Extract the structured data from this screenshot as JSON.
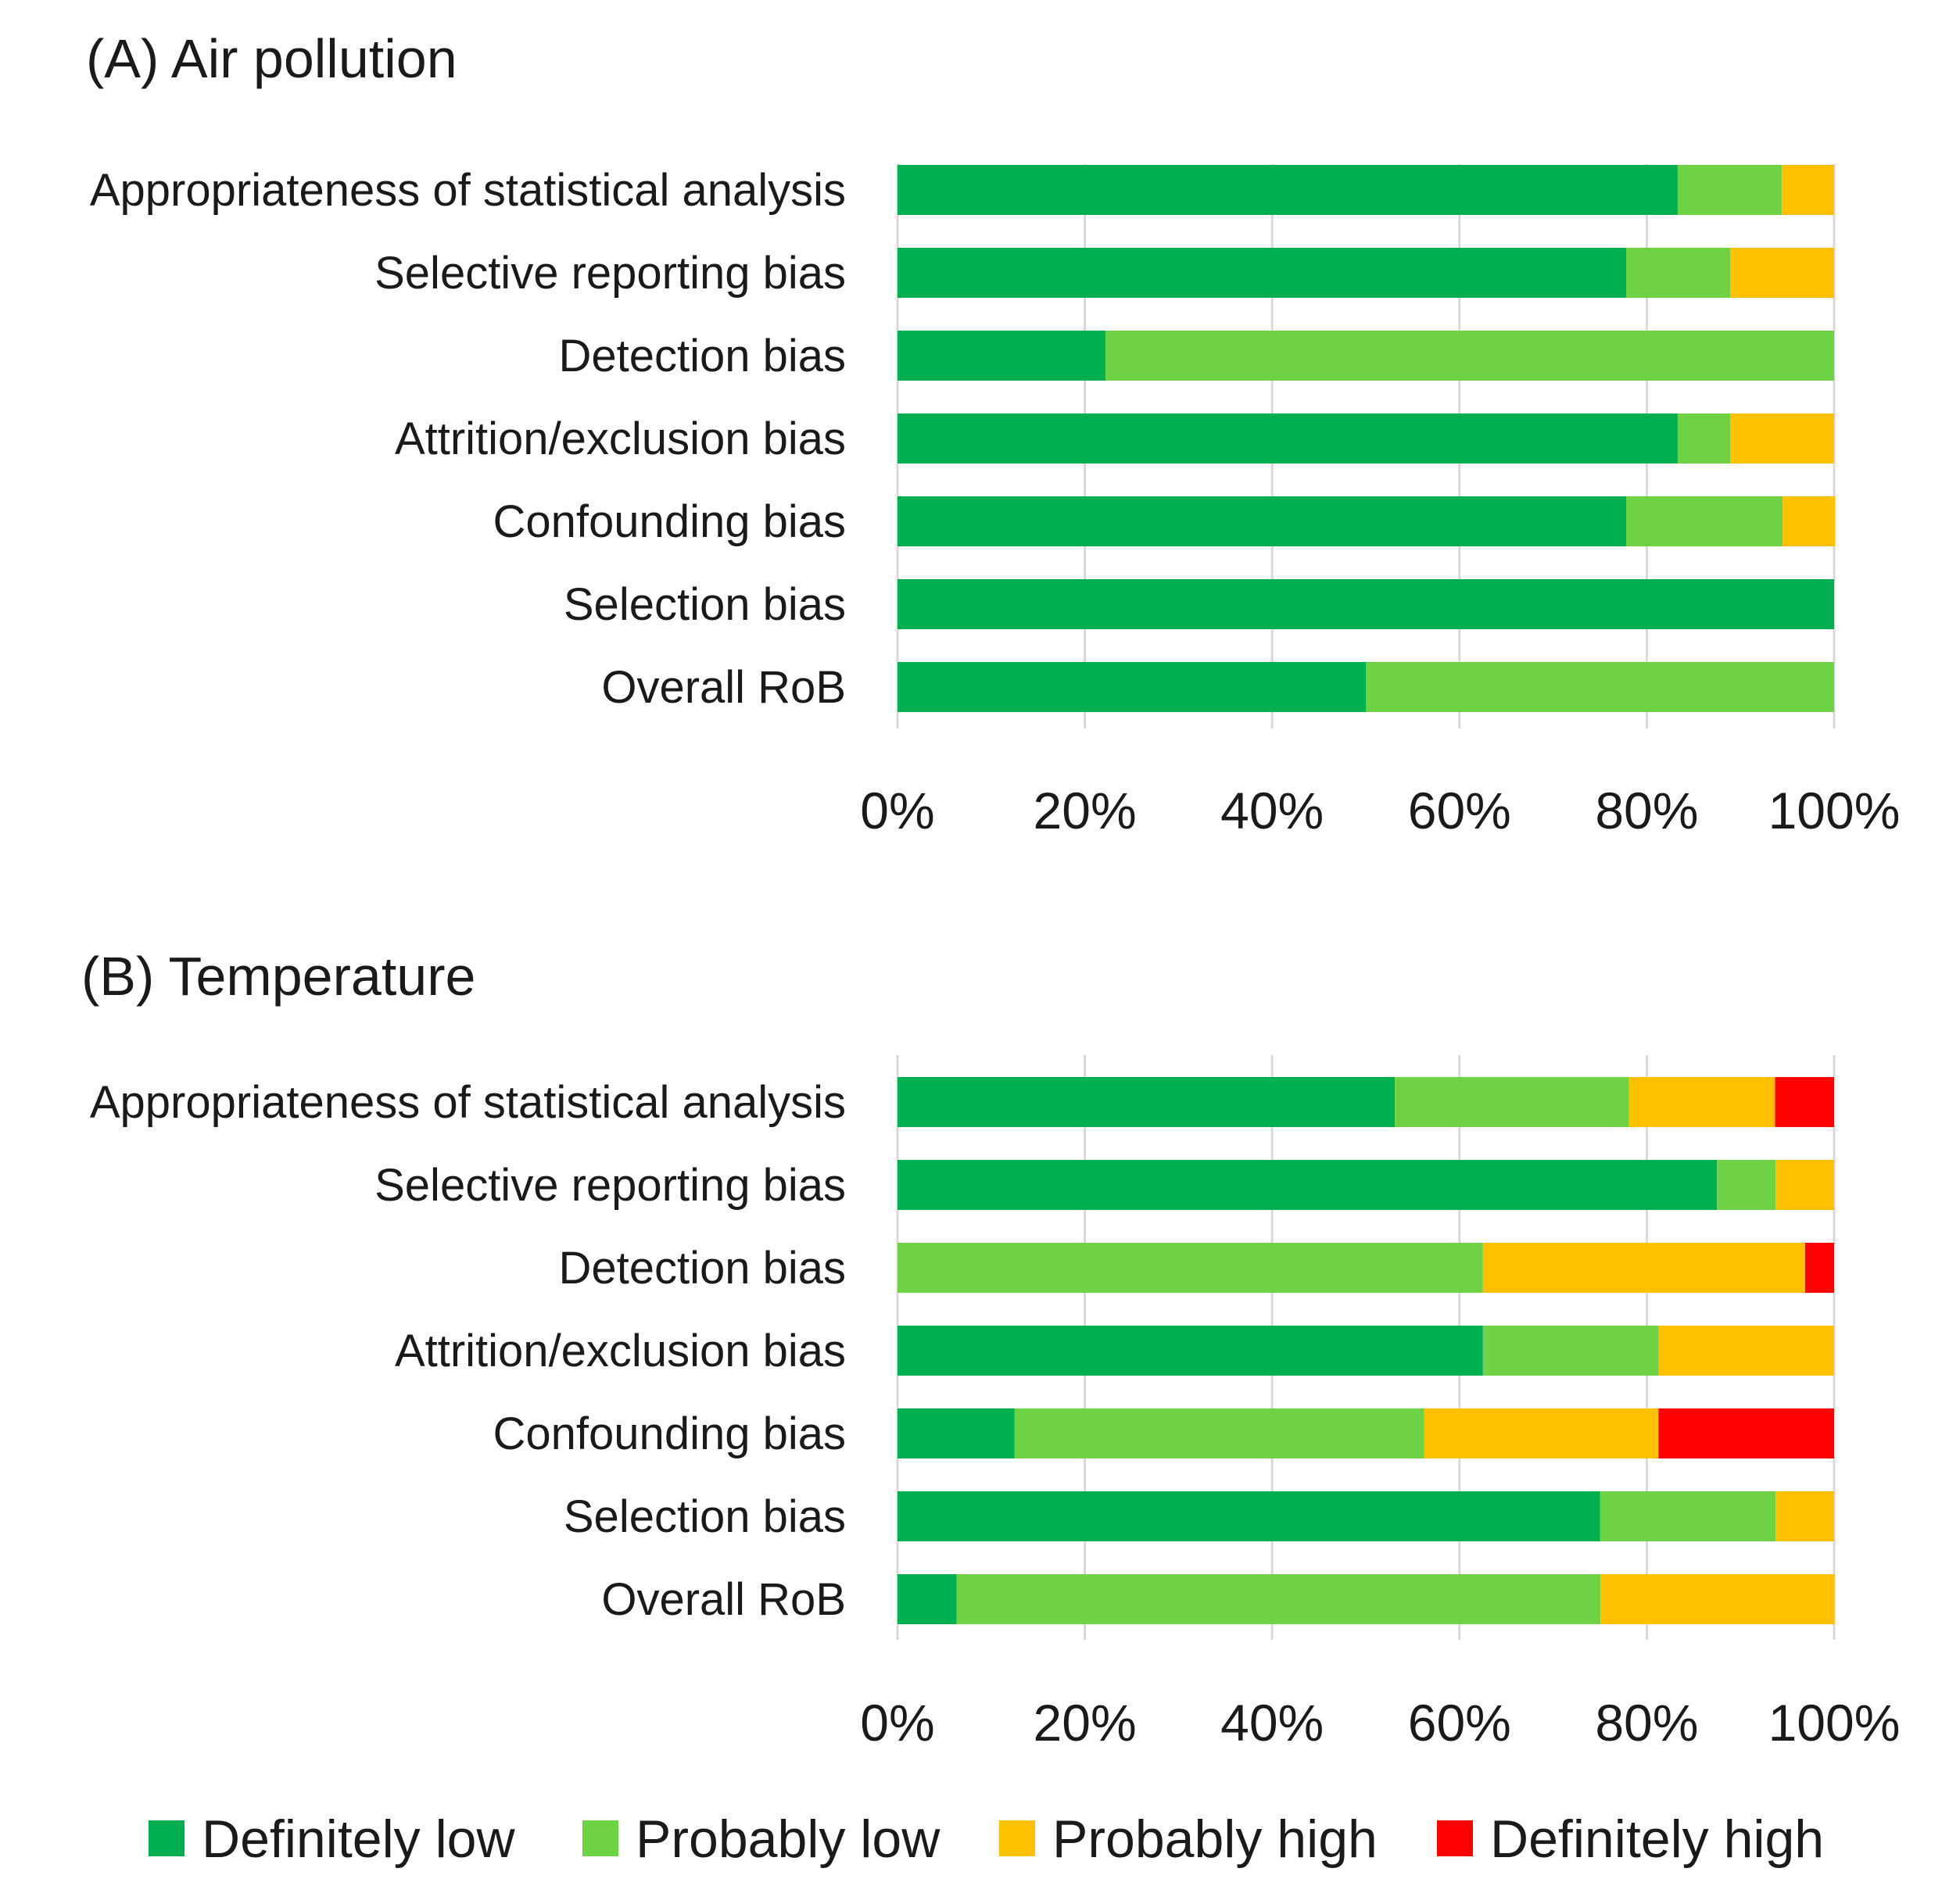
{
  "chart_data": [
    {
      "type": "bar",
      "orientation": "horizontal",
      "stacked": "percent",
      "title": "(A) Air pollution",
      "categories": [
        "Appropriateness of statistical analysis",
        "Selective reporting bias",
        "Detection bias",
        "Attrition/exclusion bias",
        "Confounding bias",
        "Selection bias",
        "Overall RoB"
      ],
      "series": [
        {
          "name": "Definitely low",
          "values": [
            83.3,
            77.8,
            22.2,
            83.3,
            77.8,
            100,
            50
          ]
        },
        {
          "name": "Probably low",
          "values": [
            11.1,
            11.1,
            77.8,
            5.6,
            16.7,
            0,
            50
          ]
        },
        {
          "name": "Probably high",
          "values": [
            5.6,
            11.1,
            0,
            11.1,
            5.6,
            0,
            0
          ]
        },
        {
          "name": "Definitely high",
          "values": [
            0,
            0,
            0,
            0,
            0,
            0,
            0
          ]
        }
      ],
      "xlim": [
        0,
        100
      ],
      "xticks": [
        "0%",
        "20%",
        "40%",
        "60%",
        "80%",
        "100%"
      ],
      "grid": true
    },
    {
      "type": "bar",
      "orientation": "horizontal",
      "stacked": "percent",
      "title": "(B) Temperature",
      "categories": [
        "Appropriateness of statistical analysis",
        "Selective reporting bias",
        "Detection bias",
        "Attrition/exclusion bias",
        "Confounding bias",
        "Selection bias",
        "Overall RoB"
      ],
      "series": [
        {
          "name": "Definitely low",
          "values": [
            53.1,
            87.5,
            0,
            62.5,
            12.5,
            75,
            6.3
          ]
        },
        {
          "name": "Probably low",
          "values": [
            25,
            6.25,
            62.5,
            18.75,
            43.75,
            18.75,
            68.75
          ]
        },
        {
          "name": "Probably high",
          "values": [
            15.6,
            6.25,
            34.4,
            18.75,
            25,
            6.25,
            25
          ]
        },
        {
          "name": "Definitely high",
          "values": [
            6.3,
            0,
            3.1,
            0,
            18.75,
            0,
            0
          ]
        }
      ],
      "xlim": [
        0,
        100
      ],
      "xticks": [
        "0%",
        "20%",
        "40%",
        "60%",
        "80%",
        "100%"
      ],
      "grid": true
    }
  ],
  "legend": {
    "placement": "bottom",
    "items": [
      {
        "label": "Definitely low",
        "color": "#00b050"
      },
      {
        "label": "Probably low",
        "color": "#6dd344"
      },
      {
        "label": "Probably high",
        "color": "#ffc000"
      },
      {
        "label": "Definitely high",
        "color": "#ff0000"
      }
    ]
  }
}
